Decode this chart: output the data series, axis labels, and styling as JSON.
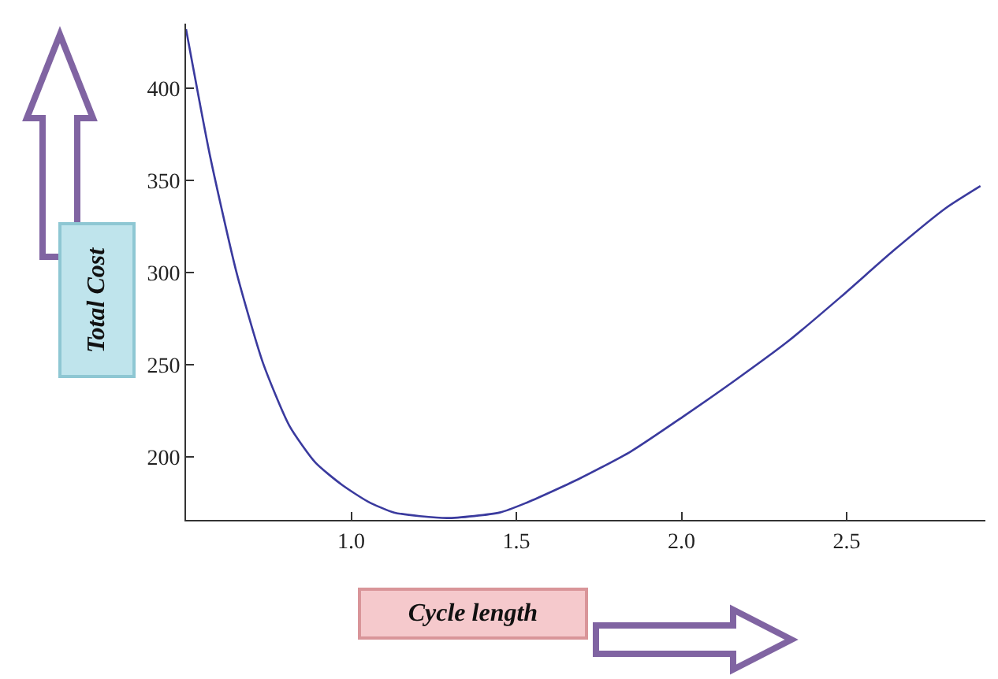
{
  "chart_data": {
    "type": "line",
    "xlabel": "Cycle length",
    "ylabel": "Total Cost",
    "x": [
      0.5,
      0.573,
      0.653,
      0.733,
      0.813,
      0.892,
      0.972,
      1.05,
      1.13,
      1.29,
      1.45,
      1.527,
      1.687,
      1.846,
      2.005,
      2.165,
      2.324,
      2.483,
      2.642,
      2.8,
      2.905
    ],
    "series": [
      {
        "color": "#3a3a9e",
        "values": [
          432,
          363,
          300,
          251,
          217,
          197,
          185,
          176,
          170,
          167,
          170,
          175,
          188,
          203,
          222,
          242,
          263,
          287,
          312,
          335,
          347
        ]
      }
    ],
    "xlim": [
      0.5,
      2.92
    ],
    "ylim": [
      166,
      435
    ],
    "xticks": [
      {
        "value": 1.0,
        "label": "1.0"
      },
      1.5,
      {
        "value": 2.0,
        "label": "2.0"
      },
      2.5
    ],
    "yticks": [
      200,
      250,
      300,
      350,
      400
    ],
    "marker": "none",
    "line_style": "solid"
  }
}
